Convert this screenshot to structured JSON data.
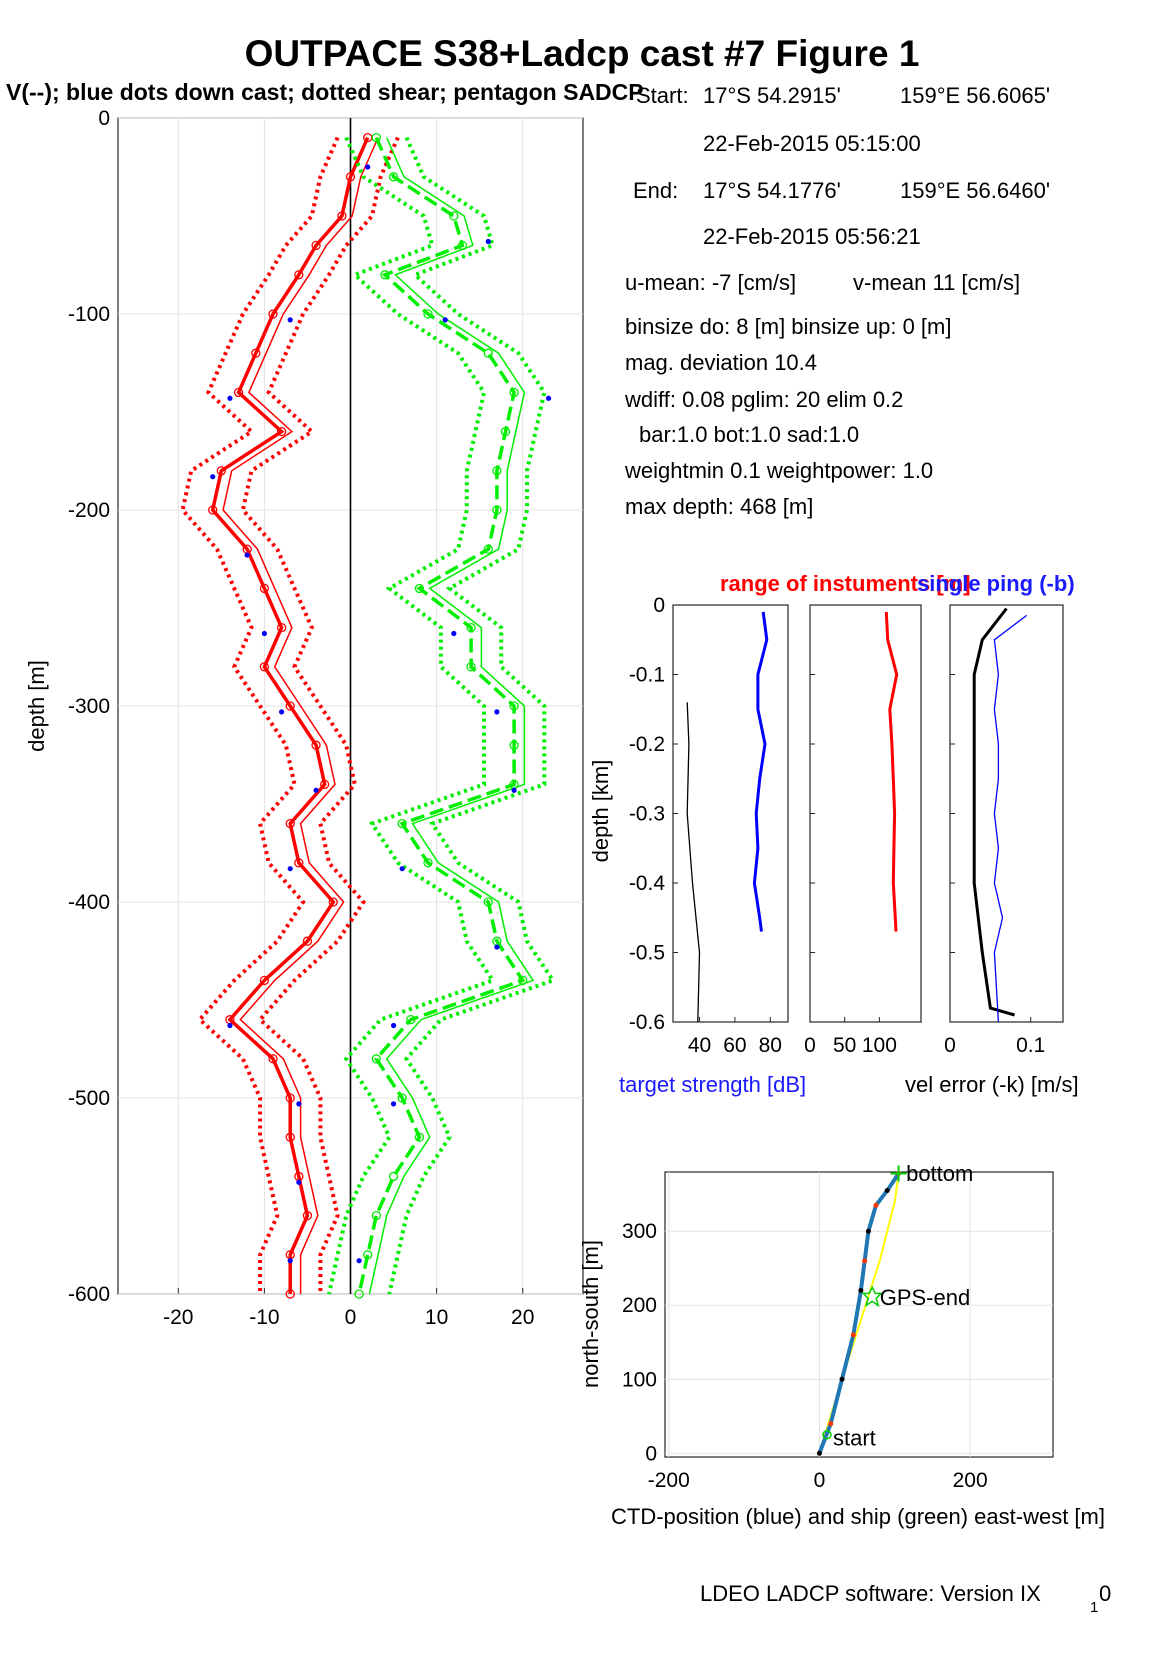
{
  "figure": {
    "title": "OUTPACE S38+Ladcp cast #7  Figure 1",
    "subtitle": "V(--); blue dots down cast; dotted shear; pentagon SADCP",
    "software": "LDEO LADCP software: Version IX",
    "software_sub": "1",
    "software_tail": "0"
  },
  "info": {
    "start_label": "Start:",
    "start_lat": "17°S 54.2915'",
    "start_lon": "159°E 56.6065'",
    "start_time": "22-Feb-2015 05:15:00",
    "end_label": "End:",
    "end_lat": "17°S 54.1776'",
    "end_lon": "159°E 56.6460'",
    "end_time": "22-Feb-2015 05:56:21",
    "u_mean": "u-mean:  -7 [cm/s]",
    "v_mean": "v-mean  11 [cm/s]",
    "binsize": "binsize do: 8 [m]  binsize up:  0 [m]",
    "mag_dev": "mag. deviation 10.4",
    "wdiff": "wdiff: 0.08  pglim: 20  elim 0.2",
    "bar": "bar:1.0 bot:1.0 sad:1.0",
    "weight": "weightmin 0.1  weightpower: 1.0",
    "max_depth": "max depth: 468 [m]"
  },
  "chart_data": [
    {
      "type": "line",
      "title": "",
      "xlabel": "",
      "ylabel": "depth [m]",
      "xlim": [
        -27,
        27
      ],
      "ylim": [
        -600,
        0
      ],
      "xticks": [
        "-20",
        "-10",
        "0",
        "10",
        "20"
      ],
      "yticks": [
        "0",
        "-100",
        "-200",
        "-300",
        "-400",
        "-500",
        "-600"
      ],
      "grid": true,
      "colors": {
        "u": "#ff0000",
        "v": "#00ee00",
        "dots": "#0000ff"
      },
      "depth": [
        -10,
        -30,
        -50,
        -65,
        -80,
        -100,
        -120,
        -140,
        -160,
        -180,
        -200,
        -220,
        -240,
        -260,
        -280,
        -300,
        -320,
        -340,
        -360,
        -380,
        -400,
        -420,
        -440,
        -460,
        -480,
        -500,
        -520,
        -540,
        -560,
        -580,
        -600
      ],
      "series": [
        {
          "name": "u",
          "values": [
            2,
            0,
            -1,
            -4,
            -6,
            -9,
            -11,
            -13,
            -8,
            -15,
            -16,
            -12,
            -10,
            -8,
            -10,
            -7,
            -4,
            -3,
            -7,
            -6,
            -2,
            -5,
            -10,
            -14,
            -9,
            -7,
            -7,
            -6,
            -5,
            -7,
            -7
          ]
        },
        {
          "name": "v",
          "values": [
            3,
            5,
            12,
            13,
            4,
            9,
            16,
            19,
            18,
            17,
            17,
            16,
            8,
            14,
            14,
            19,
            19,
            19,
            6,
            9,
            16,
            17,
            20,
            7,
            3,
            6,
            8,
            5,
            3,
            2,
            1
          ]
        }
      ],
      "shear_halfwidth": 3.5,
      "blue_dots": [
        {
          "x": 2,
          "y": -25
        },
        {
          "x": 16,
          "y": -63
        },
        {
          "x": -7,
          "y": -103
        },
        {
          "x": 11,
          "y": -103
        },
        {
          "x": -14,
          "y": -143
        },
        {
          "x": 23,
          "y": -143
        },
        {
          "x": -16,
          "y": -183
        },
        {
          "x": -12,
          "y": -223
        },
        {
          "x": -10,
          "y": -263
        },
        {
          "x": 12,
          "y": -263
        },
        {
          "x": -8,
          "y": -303
        },
        {
          "x": 17,
          "y": -303
        },
        {
          "x": -4,
          "y": -343
        },
        {
          "x": 19,
          "y": -343
        },
        {
          "x": -7,
          "y": -383
        },
        {
          "x": 6,
          "y": -383
        },
        {
          "x": 17,
          "y": -423
        },
        {
          "x": -14,
          "y": -463
        },
        {
          "x": 5,
          "y": -463
        },
        {
          "x": -6,
          "y": -503
        },
        {
          "x": 5,
          "y": -503
        },
        {
          "x": -6,
          "y": -543
        },
        {
          "x": -7,
          "y": -583
        },
        {
          "x": 1,
          "y": -583
        }
      ]
    },
    {
      "type": "line",
      "title": "range of instuments [m]",
      "title2": "single ping (-b)",
      "xlabel": "target strength [dB]",
      "xlabel2": "vel error (-k) [m/s]",
      "ylabel": "depth [km]",
      "ylim": [
        -0.6,
        0
      ],
      "yticks": [
        "0",
        "-0.1",
        "-0.2",
        "-0.3",
        "-0.4",
        "-0.5",
        "-0.6"
      ],
      "panels": [
        {
          "name": "target-strength",
          "xlim": [
            25,
            90
          ],
          "xticks": [
            "40",
            "60",
            "80"
          ],
          "series": [
            {
              "name": "target strength",
              "color": "#0000ff",
              "depth": [
                -0.01,
                -0.05,
                -0.1,
                -0.15,
                -0.2,
                -0.25,
                -0.3,
                -0.35,
                -0.4,
                -0.45,
                -0.47
              ],
              "values": [
                76,
                78,
                73,
                73,
                77,
                74,
                72,
                73,
                71,
                74,
                75
              ]
            },
            {
              "name": "black profile",
              "color": "#000000",
              "depth": [
                -0.14,
                -0.2,
                -0.3,
                -0.4,
                -0.5,
                -0.6
              ],
              "values": [
                33,
                34,
                33,
                36,
                40,
                39
              ]
            }
          ]
        },
        {
          "name": "range",
          "xlim": [
            0,
            160
          ],
          "xticks": [
            "0",
            "50",
            "100"
          ],
          "series": [
            {
              "name": "range",
              "color": "#ff0000",
              "depth": [
                -0.01,
                -0.05,
                -0.1,
                -0.15,
                -0.2,
                -0.25,
                -0.3,
                -0.35,
                -0.4,
                -0.45,
                -0.47
              ],
              "values": [
                110,
                112,
                125,
                115,
                118,
                120,
                122,
                121,
                120,
                123,
                124
              ]
            }
          ]
        },
        {
          "name": "vel-error",
          "xlim": [
            0,
            0.14
          ],
          "xticks": [
            "0",
            "0.1"
          ],
          "series": [
            {
              "name": "vel error",
              "color": "#000000",
              "depth": [
                -0.005,
                -0.05,
                -0.1,
                -0.2,
                -0.3,
                -0.4,
                -0.5,
                -0.58,
                -0.59
              ],
              "values": [
                0.07,
                0.04,
                0.03,
                0.03,
                0.03,
                0.03,
                0.04,
                0.05,
                0.08
              ]
            },
            {
              "name": "single ping",
              "color": "#0000ff",
              "depth": [
                -0.015,
                -0.05,
                -0.1,
                -0.15,
                -0.2,
                -0.25,
                -0.3,
                -0.35,
                -0.4,
                -0.45,
                -0.5,
                -0.6
              ],
              "values": [
                0.095,
                0.055,
                0.06,
                0.055,
                0.06,
                0.06,
                0.055,
                0.06,
                0.055,
                0.065,
                0.055,
                0.06
              ]
            }
          ]
        }
      ]
    },
    {
      "type": "line",
      "title": "",
      "xlabel": "CTD-position (blue) and ship (green) east-west [m]",
      "ylabel": "north-south [m]",
      "xlim": [
        -205,
        310
      ],
      "ylim": [
        -5,
        380
      ],
      "xticks": [
        "-200",
        "0",
        "200"
      ],
      "yticks": [
        "0",
        "100",
        "200",
        "300"
      ],
      "grid": true,
      "annotations": [
        {
          "text": "start",
          "x": 18,
          "y": 20
        },
        {
          "text": "bottom",
          "x": 115,
          "y": 377
        },
        {
          "text": "GPS-end",
          "x": 80,
          "y": 210
        }
      ],
      "series": [
        {
          "name": "CTD-position",
          "color": "#1f77b4",
          "x": [
            0,
            15,
            30,
            45,
            55,
            60,
            65,
            75,
            90,
            105
          ],
          "y": [
            0,
            40,
            100,
            160,
            220,
            260,
            300,
            335,
            355,
            378
          ]
        },
        {
          "name": "ship",
          "color": "#ffff00",
          "x": [
            0,
            30,
            55,
            80,
            100,
            105
          ],
          "y": [
            0,
            100,
            180,
            260,
            340,
            378
          ]
        }
      ]
    }
  ]
}
